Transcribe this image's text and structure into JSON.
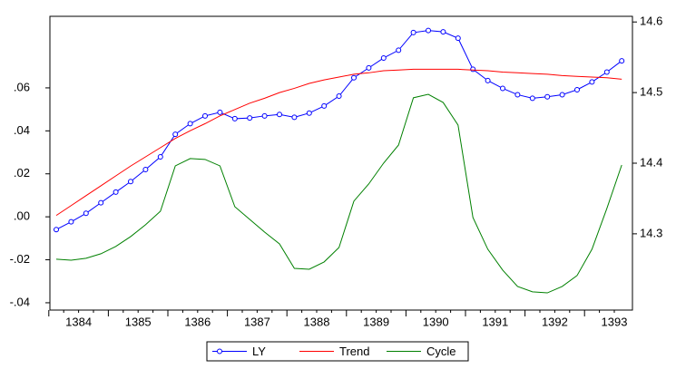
{
  "chart_data": {
    "type": "line",
    "categories": [
      "1384",
      null,
      null,
      null,
      "1385",
      null,
      null,
      null,
      "1386",
      null,
      null,
      null,
      "1387",
      null,
      null,
      null,
      "1388",
      null,
      null,
      null,
      "1389",
      null,
      null,
      null,
      "1390",
      null,
      null,
      null,
      "1391",
      null,
      null,
      null,
      "1392",
      null,
      null,
      null,
      "1393",
      null,
      null
    ],
    "series": [
      {
        "name": "LY",
        "color": "#0000ff",
        "axis": "y2",
        "marker": "circle",
        "values": [
          14.306,
          14.317,
          14.329,
          14.344,
          14.359,
          14.374,
          14.391,
          14.409,
          14.441,
          14.456,
          14.467,
          14.472,
          14.463,
          14.464,
          14.467,
          14.469,
          14.465,
          14.471,
          14.481,
          14.495,
          14.521,
          14.535,
          14.549,
          14.56,
          14.585,
          14.588,
          14.586,
          14.577,
          14.533,
          14.517,
          14.506,
          14.497,
          14.492,
          14.494,
          14.497,
          14.504,
          14.515,
          14.529,
          14.545
        ]
      },
      {
        "name": "Trend",
        "color": "#ff0000",
        "axis": "y2",
        "values": [
          14.326,
          14.34,
          14.354,
          14.368,
          14.382,
          14.396,
          14.409,
          14.422,
          14.435,
          14.446,
          14.456,
          14.467,
          14.476,
          14.485,
          14.492,
          14.5,
          14.506,
          14.513,
          14.518,
          14.522,
          14.526,
          14.528,
          14.531,
          14.532,
          14.533,
          14.533,
          14.533,
          14.533,
          14.532,
          14.531,
          14.529,
          14.528,
          14.527,
          14.526,
          14.524,
          14.523,
          14.522,
          14.521,
          14.519
        ]
      },
      {
        "name": "Cycle",
        "color": "#008000",
        "values": [
          -0.0197,
          -0.0202,
          -0.0193,
          -0.0172,
          -0.0138,
          -0.0092,
          -0.0037,
          0.0026,
          0.0237,
          0.0271,
          0.0267,
          0.0237,
          0.0047,
          -0.0012,
          -0.0071,
          -0.0126,
          -0.024,
          -0.0244,
          -0.021,
          -0.0143,
          0.0073,
          0.0153,
          0.025,
          0.0334,
          0.0554,
          0.057,
          0.0532,
          0.0427,
          -0.0003,
          -0.0151,
          -0.0248,
          -0.0324,
          -0.0349,
          -0.0354,
          -0.0324,
          -0.0273,
          -0.0151,
          0.0039,
          0.0241
        ]
      }
    ],
    "ylim": [
      -0.0434,
      0.0933
    ],
    "yticks": [
      {
        "value": -0.04,
        "label": "-.04"
      },
      {
        "value": -0.02,
        "label": "-.02"
      },
      {
        "value": 0,
        "label": ".00"
      },
      {
        "value": 0.02,
        "label": ".02"
      },
      {
        "value": 0.04,
        "label": ".04"
      },
      {
        "value": 0.06,
        "label": ".06"
      }
    ],
    "y2lim": [
      14.192,
      14.608
    ],
    "y2ticks": [
      14.3,
      14.4,
      14.5,
      14.6
    ],
    "grid": false,
    "legend": "bottom"
  }
}
